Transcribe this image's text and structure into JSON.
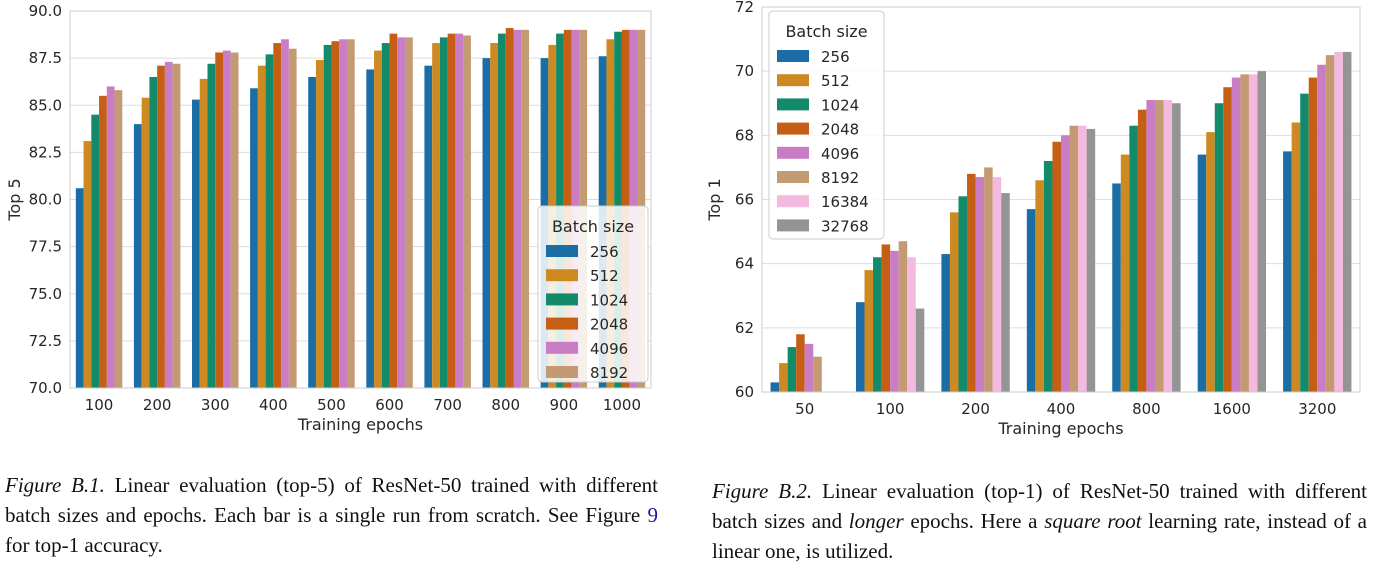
{
  "colors": {
    "256": "#1a6ea5",
    "512": "#ce8a22",
    "1024": "#138a6a",
    "2048": "#c65f16",
    "4096": "#c97dc4",
    "8192": "#c49a72",
    "16384": "#f4b9df",
    "32768": "#949494"
  },
  "chart_data": [
    {
      "type": "bar",
      "categories": [
        "100",
        "200",
        "300",
        "400",
        "500",
        "600",
        "700",
        "800",
        "900",
        "1000"
      ],
      "series": [
        {
          "name": "256",
          "values": [
            80.6,
            84.0,
            85.3,
            85.9,
            86.5,
            86.9,
            87.1,
            87.5,
            87.5,
            87.6
          ]
        },
        {
          "name": "512",
          "values": [
            83.1,
            85.4,
            86.4,
            87.1,
            87.4,
            87.9,
            88.3,
            88.3,
            88.2,
            88.5
          ]
        },
        {
          "name": "1024",
          "values": [
            84.5,
            86.5,
            87.2,
            87.7,
            88.2,
            88.3,
            88.6,
            88.8,
            88.8,
            88.9
          ]
        },
        {
          "name": "2048",
          "values": [
            85.5,
            87.1,
            87.8,
            88.3,
            88.4,
            88.8,
            88.8,
            89.1,
            89.0,
            89.0
          ]
        },
        {
          "name": "4096",
          "values": [
            86.0,
            87.3,
            87.9,
            88.5,
            88.5,
            88.6,
            88.8,
            89.0,
            89.0,
            89.0
          ]
        },
        {
          "name": "8192",
          "values": [
            85.8,
            87.2,
            87.8,
            88.0,
            88.5,
            88.6,
            88.7,
            89.0,
            89.0,
            89.0
          ]
        }
      ],
      "xlabel": "Training epochs",
      "ylabel": "Top 5",
      "ylim": [
        70.0,
        90.0
      ],
      "yticks": [
        "90.0",
        "87.5",
        "85.0",
        "82.5",
        "80.0",
        "77.5",
        "75.0",
        "72.5",
        "70.0"
      ],
      "legend_title": "Batch size",
      "legend_position": "lower-right",
      "grid": true
    },
    {
      "type": "bar",
      "categories": [
        "50",
        "100",
        "200",
        "400",
        "800",
        "1600",
        "3200"
      ],
      "series": [
        {
          "name": "256",
          "values": [
            60.3,
            62.8,
            64.3,
            65.7,
            66.5,
            67.4,
            67.5
          ]
        },
        {
          "name": "512",
          "values": [
            60.9,
            63.8,
            65.6,
            66.6,
            67.4,
            68.1,
            68.4
          ]
        },
        {
          "name": "1024",
          "values": [
            61.4,
            64.2,
            66.1,
            67.2,
            68.3,
            69.0,
            69.3
          ]
        },
        {
          "name": "2048",
          "values": [
            61.8,
            64.6,
            66.8,
            67.8,
            68.8,
            69.5,
            69.8
          ]
        },
        {
          "name": "4096",
          "values": [
            61.5,
            64.4,
            66.7,
            68.0,
            69.1,
            69.8,
            70.2
          ]
        },
        {
          "name": "8192",
          "values": [
            61.1,
            64.7,
            67.0,
            68.3,
            69.1,
            69.9,
            70.5
          ]
        },
        {
          "name": "16384",
          "values": [
            null,
            64.2,
            66.7,
            68.3,
            69.1,
            69.9,
            70.6
          ]
        },
        {
          "name": "32768",
          "values": [
            null,
            62.6,
            66.2,
            68.2,
            69.0,
            70.0,
            70.6
          ]
        }
      ],
      "xlabel": "Training epochs",
      "ylabel": "Top 1",
      "ylim": [
        60,
        72
      ],
      "yticks": [
        "72",
        "70",
        "68",
        "66",
        "64",
        "62",
        "60"
      ],
      "legend_title": "Batch size",
      "legend_position": "upper-left",
      "grid": true
    }
  ],
  "captions": {
    "left": {
      "label": "Figure B.1.",
      "text1": " Linear evaluation (top-5) of ResNet-50 trained with different batch sizes and epochs.  Each bar is a single run from scratch. See Figure ",
      "ref": "9",
      "text2": " for top-1 accuracy."
    },
    "right": {
      "label": "Figure B.2.",
      "text1": " Linear evaluation (top-1) of ResNet-50 trained with different batch sizes and ",
      "em1": "longer",
      "text2": " epochs. Here a ",
      "em2": "square root",
      "text3": " learning rate, instead of a linear one, is utilized."
    }
  }
}
